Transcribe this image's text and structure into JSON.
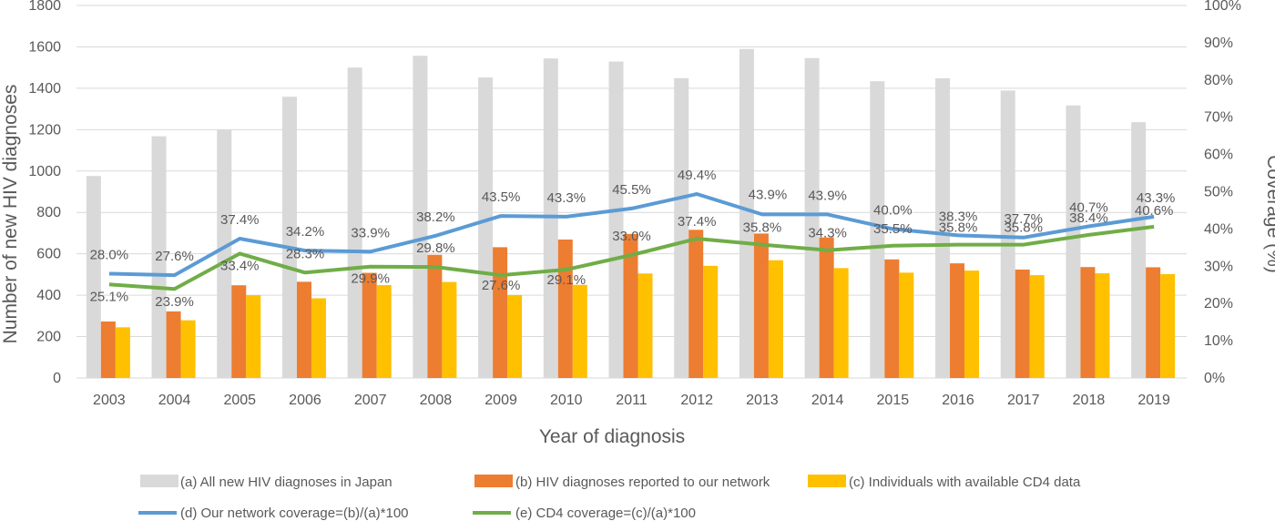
{
  "chart_data": {
    "type": "bar",
    "title": "",
    "xlabel": "Year of diagnosis",
    "ylabel": "Number of new HIV diagnoses",
    "y2label": "Coverage (%)",
    "ylim": [
      0,
      1800
    ],
    "y2lim": [
      0,
      100
    ],
    "yticks": [
      "0",
      "200",
      "400",
      "600",
      "800",
      "1000",
      "1200",
      "1400",
      "1600",
      "1800"
    ],
    "y2ticks": [
      "0%",
      "10%",
      "20%",
      "30%",
      "40%",
      "50%",
      "60%",
      "70%",
      "80%",
      "90%",
      "100%"
    ],
    "grid": true,
    "legend_position": "bottom",
    "categories": [
      "2003",
      "2004",
      "2005",
      "2006",
      "2007",
      "2008",
      "2009",
      "2010",
      "2011",
      "2012",
      "2013",
      "2014",
      "2015",
      "2016",
      "2017",
      "2018",
      "2019"
    ],
    "bar_series": [
      {
        "name": "(a) All new HIV diagnoses in Japan",
        "color": "#d9d9d9",
        "values": [
          976,
          1168,
          1199,
          1359,
          1500,
          1557,
          1452,
          1544,
          1529,
          1449,
          1590,
          1546,
          1434,
          1448,
          1389,
          1317,
          1236
        ]
      },
      {
        "name": "(b) HIV diagnoses reported to our network",
        "color": "#ed7d31",
        "values": [
          273,
          322,
          448,
          465,
          508,
          595,
          632,
          669,
          696,
          716,
          698,
          679,
          573,
          554,
          524,
          536,
          535
        ]
      },
      {
        "name": "(c) Individuals with available CD4 data",
        "color": "#ffc000",
        "values": [
          245,
          279,
          400,
          385,
          449,
          464,
          401,
          450,
          505,
          542,
          569,
          531,
          509,
          519,
          497,
          506,
          502
        ]
      }
    ],
    "line_series": [
      {
        "name": "(d) Our network coverage=(b)/(a)*100",
        "color": "#5b9bd5",
        "values": [
          28.0,
          27.6,
          37.4,
          34.2,
          33.9,
          38.2,
          43.5,
          43.3,
          45.5,
          49.4,
          43.9,
          43.9,
          40.0,
          38.3,
          37.7,
          40.7,
          43.3
        ],
        "labels": [
          "28.0%",
          "27.6%",
          "37.4%",
          "34.2%",
          "33.9%",
          "38.2%",
          "43.5%",
          "43.3%",
          "45.5%",
          "49.4%",
          "43.9%",
          "43.9%",
          "40.0%",
          "38.3%",
          "37.7%",
          "40.7%",
          "43.3%"
        ]
      },
      {
        "name": "(e) CD4 coverage=(c)/(a)*100",
        "color": "#70ad47",
        "values": [
          25.1,
          23.9,
          33.4,
          28.3,
          29.9,
          29.8,
          27.6,
          29.1,
          33.0,
          37.4,
          35.8,
          34.3,
          35.5,
          35.8,
          35.8,
          38.4,
          40.6
        ],
        "labels": [
          "25.1%",
          "23.9%",
          "33.4%",
          "28.3%",
          "29.9%",
          "29.8%",
          "27.6%",
          "29.1%",
          "33.0%",
          "37.4%",
          "35.8%",
          "34.3%",
          "35.5%",
          "35.8%",
          "35.8%",
          "38.4%",
          "40.6%"
        ]
      }
    ]
  }
}
